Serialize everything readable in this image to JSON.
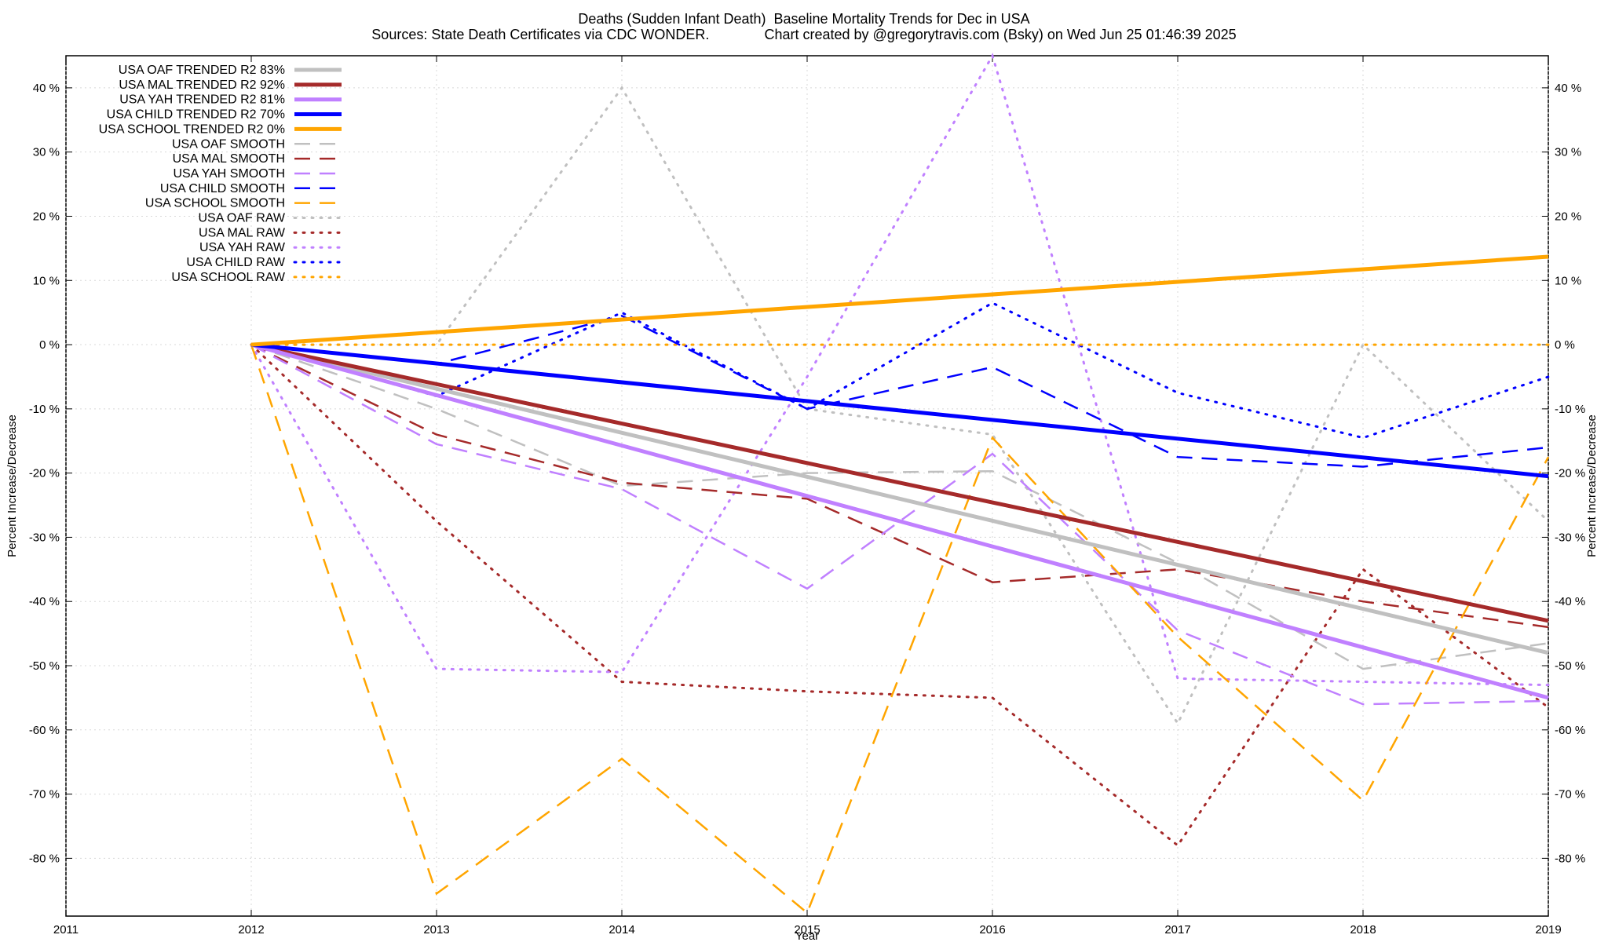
{
  "chart_data": {
    "type": "line",
    "title": "Deaths (Sudden Infant Death)  Baseline Mortality Trends for Dec in USA",
    "subtitle": "Sources: State Death Certificates via CDC WONDER.              Chart created by @gregorytravis.com (Bsky) on Wed Jun 25 01:46:39 2025",
    "xlabel": "Year",
    "ylabel": "Percent Increase/Decrease",
    "y2label": "Percent Increase/Decrease",
    "xlim": [
      2011,
      2019
    ],
    "ylim": [
      -89,
      45
    ],
    "x_ticks": [
      "2011",
      "2012",
      "2013",
      "2014",
      "2015",
      "2016",
      "2017",
      "2018",
      "2019"
    ],
    "y_ticks": [
      "40 %",
      "30 %",
      "20 %",
      "10 %",
      "0 %",
      "-10 %",
      "-20 %",
      "-30 %",
      "-40 %",
      "-50 %",
      "-60 %",
      "-70 %",
      "-80 %"
    ],
    "grid": true,
    "legend_position": "top-left",
    "colors": {
      "oaf": "#c0c0c0",
      "mal": "#a52a2a",
      "yah": "#c080ff",
      "child": "#0000ff",
      "school": "#ffa500"
    },
    "series": [
      {
        "name": "USA OAF TRENDED R2  83%",
        "group": "oaf",
        "style": "solid",
        "x": [
          2012,
          2019
        ],
        "values": [
          0,
          -48
        ]
      },
      {
        "name": "USA MAL TRENDED R2  92%",
        "group": "mal",
        "style": "solid",
        "x": [
          2012,
          2019
        ],
        "values": [
          0,
          -43
        ]
      },
      {
        "name": "USA YAH TRENDED R2  81%",
        "group": "yah",
        "style": "solid",
        "x": [
          2012,
          2019
        ],
        "values": [
          0,
          -55
        ]
      },
      {
        "name": "USA CHILD TRENDED R2  70%",
        "group": "child",
        "style": "solid",
        "x": [
          2012,
          2019
        ],
        "values": [
          0,
          -20.5
        ]
      },
      {
        "name": "USA SCHOOL TRENDED R2   0%",
        "group": "school",
        "style": "solid",
        "x": [
          2012,
          2019
        ],
        "values": [
          0,
          13.7
        ]
      },
      {
        "name": "USA OAF SMOOTH",
        "group": "oaf",
        "style": "dash",
        "x": [
          2012,
          2013,
          2014,
          2015,
          2016,
          2017,
          2018,
          2019
        ],
        "values": [
          0,
          -10,
          -22,
          -20,
          -19.7,
          -34,
          -50.5,
          -46.5
        ]
      },
      {
        "name": "USA MAL SMOOTH",
        "group": "mal",
        "style": "dash",
        "x": [
          2012,
          2013,
          2014,
          2015,
          2016,
          2017,
          2018,
          2019
        ],
        "values": [
          0,
          -14,
          -21.5,
          -24,
          -37,
          -35,
          -40,
          -44
        ]
      },
      {
        "name": "USA YAH SMOOTH",
        "group": "yah",
        "style": "dash",
        "x": [
          2012,
          2013,
          2014,
          2015,
          2016,
          2017,
          2018,
          2019
        ],
        "values": [
          0,
          -15.5,
          -22.5,
          -38,
          -17,
          -44.5,
          -56,
          -55.5
        ]
      },
      {
        "name": "USA CHILD SMOOTH",
        "group": "child",
        "style": "dash",
        "x": [
          2012,
          2013,
          2014,
          2015,
          2016,
          2017,
          2018,
          2019
        ],
        "values": [
          0,
          -3,
          4.5,
          -10,
          -3.5,
          -17.5,
          -19,
          -16
        ]
      },
      {
        "name": "USA SCHOOL SMOOTH",
        "group": "school",
        "style": "dash",
        "x": [
          2012,
          2013,
          2014,
          2015,
          2016,
          2017,
          2018,
          2019
        ],
        "values": [
          0,
          -85.5,
          -64.5,
          -88.5,
          -14.5,
          -45.5,
          -71,
          -17.5
        ]
      },
      {
        "name": "USA OAF RAW",
        "group": "oaf",
        "style": "dot",
        "x": [
          2012,
          2013,
          2014,
          2015,
          2016,
          2017,
          2018,
          2019
        ],
        "values": [
          0,
          0,
          40,
          -10,
          -14,
          -59,
          0,
          -27.5
        ]
      },
      {
        "name": "USA MAL RAW",
        "group": "mal",
        "style": "dot",
        "x": [
          2012,
          2013,
          2014,
          2015,
          2016,
          2017,
          2018,
          2019
        ],
        "values": [
          0,
          -27.5,
          -52.5,
          -54,
          -55,
          -78,
          -35,
          -56.5
        ]
      },
      {
        "name": "USA YAH RAW",
        "group": "yah",
        "style": "dot",
        "x": [
          2012,
          2013,
          2014,
          2015,
          2016,
          2017,
          2018,
          2019
        ],
        "values": [
          0,
          -50.5,
          -51,
          -5,
          45,
          -52,
          -52.5,
          -53
        ]
      },
      {
        "name": "USA CHILD RAW",
        "group": "child",
        "style": "dot",
        "x": [
          2012,
          2013,
          2014,
          2015,
          2016,
          2017,
          2018,
          2019
        ],
        "values": [
          0,
          -8,
          5,
          -10,
          6.5,
          -7.5,
          -14.5,
          -5
        ]
      },
      {
        "name": "USA SCHOOL RAW",
        "group": "school",
        "style": "dot",
        "x": [
          2012,
          2013,
          2014,
          2015,
          2016,
          2017,
          2018,
          2019
        ],
        "values": [
          0,
          0,
          0,
          0,
          0,
          0,
          0,
          0
        ]
      }
    ]
  }
}
